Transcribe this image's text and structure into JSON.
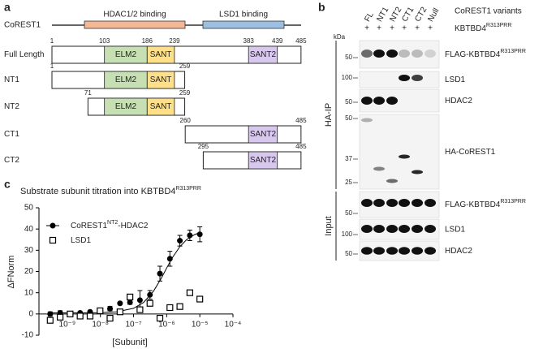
{
  "panel_a": {
    "letter": "a",
    "protein": "CoREST1",
    "binding_regions": [
      "HDAC1/2 binding",
      "LSD1 binding"
    ],
    "constructs": [
      {
        "label": "Full Length",
        "start": 1,
        "end": 485,
        "domains": [
          {
            "label": "ELM2",
            "start": 103,
            "end": 186
          },
          {
            "label": "SANT",
            "start": 186,
            "end": 239
          },
          {
            "label": "SANT2",
            "start": 383,
            "end": 439
          }
        ]
      },
      {
        "label": "NT1",
        "start": 1,
        "end": 259,
        "domains": [
          {
            "label": "ELM2",
            "start": 103,
            "end": 186
          },
          {
            "label": "SANT",
            "start": 186,
            "end": 239
          }
        ]
      },
      {
        "label": "NT2",
        "start": 71,
        "end": 259,
        "domains": [
          {
            "label": "ELM2",
            "start": 103,
            "end": 186
          },
          {
            "label": "SANT",
            "start": 186,
            "end": 239
          }
        ]
      },
      {
        "label": "CT1",
        "start": 260,
        "end": 485,
        "domains": [
          {
            "label": "SANT2",
            "start": 383,
            "end": 439
          }
        ]
      },
      {
        "label": "CT2",
        "start": 295,
        "end": 485,
        "domains": [
          {
            "label": "SANT2",
            "start": 383,
            "end": 439
          }
        ]
      }
    ]
  },
  "panel_b": {
    "letter": "b",
    "kda": "kDa",
    "lanes": [
      "FL",
      "NT1",
      "NT2",
      "CT1",
      "CT2",
      "Null"
    ],
    "lane_group": "CoREST1 variants",
    "plus": [
      "+",
      "+",
      "+",
      "+",
      "+",
      "+"
    ],
    "bait": [
      "KBTBD4",
      "R313PRR"
    ],
    "sections": [
      {
        "label": "HA-IP",
        "blots": [
          {
            "label": [
              "FLAG-KBTBD4",
              "R313PRR"
            ],
            "markers": [
              50
            ]
          },
          {
            "label": [
              "LSD1"
            ],
            "markers": [
              100
            ]
          },
          {
            "label": [
              "HDAC2"
            ],
            "markers": [
              50
            ]
          },
          {
            "label": [
              "HA-CoREST1"
            ],
            "markers": [
              50,
              37,
              25
            ]
          }
        ]
      },
      {
        "label": "Input",
        "blots": [
          {
            "label": [
              "FLAG-KBTBD4",
              "R313PRR"
            ],
            "markers": [
              50
            ]
          },
          {
            "label": [
              "LSD1"
            ],
            "markers": [
              100
            ]
          },
          {
            "label": [
              "HDAC2"
            ],
            "markers": [
              50
            ]
          }
        ]
      }
    ]
  },
  "chart_data": {
    "type": "scatter",
    "letter": "c",
    "title": [
      "Substrate subunit titration into KBTBD4",
      "R313PRR"
    ],
    "x_label": "[Subunit]",
    "y_label": "ΔFNorm",
    "xscale": "log",
    "legend": "upper left",
    "xlim": [
      1.4e-10,
      0.0001
    ],
    "ylim": [
      -10,
      50
    ],
    "yticks": [
      -10,
      0,
      10,
      20,
      30,
      40,
      50
    ],
    "xticks": [
      {
        "value": 1e-09,
        "label": "10⁻⁹"
      },
      {
        "value": 1e-08,
        "label": "10⁻⁸"
      },
      {
        "value": 1e-07,
        "label": "10⁻⁷"
      },
      {
        "value": 1e-06,
        "label": "10⁻⁶"
      },
      {
        "value": 1e-05,
        "label": "10⁻⁵"
      },
      {
        "value": 0.0001,
        "label": "10⁻⁴"
      }
    ],
    "series": [
      {
        "name": [
          "CoREST1",
          "NT2",
          "-HDAC2"
        ],
        "color": "#000000",
        "marker": "circle",
        "x": [
          1e-05,
          5e-06,
          2.5e-06,
          1.25e-06,
          6.25e-07,
          3.13e-07,
          1.56e-07,
          7.81e-08,
          3.91e-08,
          1.95e-08,
          9.77e-09,
          4.88e-09,
          2.44e-09,
          1.22e-09,
          6.1e-10,
          3.05e-10
        ],
        "values": [
          37.5,
          37,
          34.5,
          26,
          19,
          9,
          6.5,
          5.5,
          5,
          2.5,
          1.5,
          1,
          0.5,
          0,
          0.5,
          0
        ],
        "errors": [
          3.5,
          2.5,
          2.5,
          3.5,
          3.5,
          2,
          4.5,
          1,
          0.5,
          1,
          1,
          0.5,
          0.5,
          0.5,
          1,
          1
        ]
      },
      {
        "name": [
          "LSD1"
        ],
        "color": "#000000",
        "marker": "square",
        "x": [
          1e-05,
          5e-06,
          2.5e-06,
          1.25e-06,
          6.25e-07,
          3.13e-07,
          1.56e-07,
          7.81e-08,
          3.91e-08,
          1.95e-08,
          9.77e-09,
          4.88e-09,
          2.44e-09,
          1.22e-09,
          6.1e-10,
          3.05e-10
        ],
        "values": [
          7,
          10,
          3.5,
          3,
          -2,
          5,
          2,
          8,
          1,
          -2,
          1.5,
          -1,
          -1,
          0,
          -1.5,
          -3
        ]
      }
    ],
    "fit": {
      "x": [
        3e-10,
        1e-09,
        3e-09,
        1e-08,
        3e-08,
        1e-07,
        2e-07,
        4e-07,
        7e-07,
        1e-06,
        1.5e-06,
        2.5e-06,
        4e-06,
        7e-06,
        1e-05
      ],
      "values": [
        0.5,
        0.5,
        0.52,
        0.61,
        0.97,
        2.65,
        5.4,
        10.7,
        17,
        21.6,
        26.6,
        31.7,
        35,
        37.4,
        38.3
      ]
    }
  }
}
